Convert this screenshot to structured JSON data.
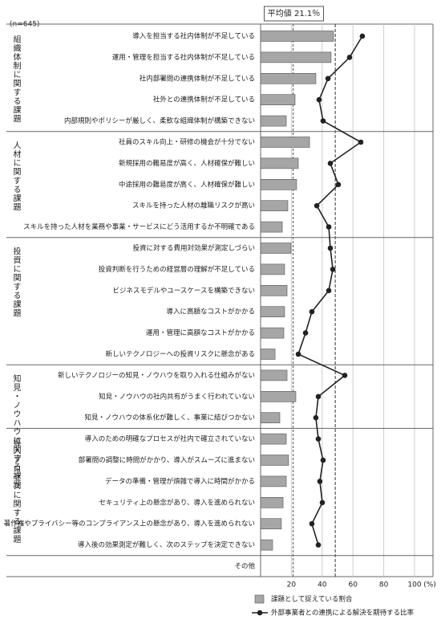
{
  "chart_data": {
    "type": "bar_line",
    "orientation": "horizontal",
    "sample_note": "(n=645)",
    "average": {
      "value": 21.1,
      "label": "平均値 21.1％"
    },
    "line_reference": 48.5,
    "x_unit": "(%)",
    "xlim": [
      0,
      100
    ],
    "xticks": [
      20,
      40,
      60,
      80,
      100
    ],
    "groups": [
      {
        "label": "組織体制に関する課題",
        "categories": [
          "導入を担当する社内体制が不足している",
          "運用・管理を担当する社内体制が不足している",
          "社内部署間の連携体制が不足している",
          "社外との連携体制が不足している",
          "内部規則やポリシーが厳しく、柔軟な組織体制が構築できない"
        ]
      },
      {
        "label": "人材に関する課題",
        "categories": [
          "社員のスキル向上・研修の機会が十分でない",
          "新規採用の難易度が高く、人材確保が難しい",
          "中途採用の難易度が高く、人材確保が難しい",
          "スキルを持った人材の離職リスクが高い",
          "スキルを持った人材を業務や事業・サービスにどう活用するか不明確である"
        ]
      },
      {
        "label": "投資に関する課題",
        "categories": [
          "投資に対する費用対効果が測定しづらい",
          "投資判断を行うための経営層の理解が不足している",
          "ビジネスモデルやユースケースを構築できない",
          "導入に高額なコストがかかる",
          "運用・管理に高額なコストがかかる",
          "新しいテクノロジーへの投資リスクに懸念がある"
        ]
      },
      {
        "label": "知見・ノウハウに関する課題",
        "categories": [
          "新しいテクノロジーの知見・ノウハウを取り入れる仕組みがない",
          "知見・ノウハウの社内共有がうまく行われていない",
          "知見・ノウハウの体系化が難しく、事業に結びつかない"
        ]
      },
      {
        "label": "導入プロセスに関する課題",
        "categories": [
          "導入のための明確なプロセスが社内で確立されていない",
          "部署間の調整に時間がかかり、導入がスムーズに進まない",
          "データの準備・管理が煩雑で導入に時間がかかる",
          "セキュリティ上の懸念があり、導入を進められない",
          "著作権やプライバシー等のコンプライアンス上の懸念があり、導入を進められない",
          "導入後の効果測定が難しく、次のステップを決定できない"
        ]
      },
      {
        "label": null,
        "categories": [
          "その他"
        ]
      }
    ],
    "series": [
      {
        "name": "課題として捉えている割合",
        "color": "#a6a6a6",
        "type": "bar",
        "values": [
          47.4,
          45.8,
          35.9,
          22.4,
          16.7,
          31.8,
          24.5,
          23.4,
          17.7,
          14.1,
          19.8,
          15.6,
          17.2,
          15.6,
          15.1,
          9.4,
          17.2,
          22.9,
          12.5,
          16.7,
          18.2,
          16.7,
          14.6,
          13.5,
          7.8,
          0
        ]
      },
      {
        "name": "外部事業者との連携による解決を期待する比率",
        "color": "#222222",
        "type": "line",
        "values": [
          66.1,
          57.8,
          43.8,
          38.0,
          40.6,
          65.1,
          45.3,
          50.5,
          36.5,
          44.3,
          45.3,
          46.9,
          44.3,
          33.3,
          29.2,
          24.5,
          54.7,
          37.5,
          35.9,
          37.5,
          40.6,
          38.5,
          40.1,
          33.3,
          37.5,
          null
        ]
      }
    ]
  }
}
